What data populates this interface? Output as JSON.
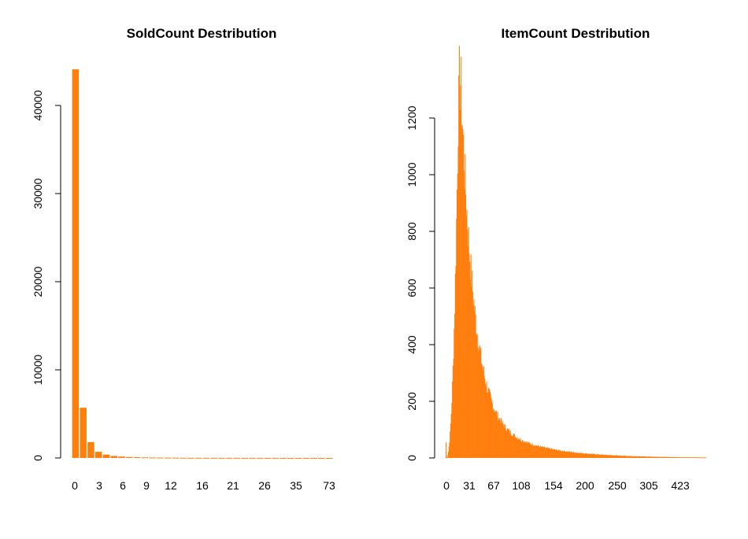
{
  "colors": {
    "bar": "#FF7F0E",
    "axis": "#000000",
    "background": "#FFFFFF"
  },
  "chart_data": [
    {
      "type": "bar",
      "title": "SoldCount Destribution",
      "xlabel": "",
      "ylabel": "",
      "ylim": [
        0,
        45000
      ],
      "y_ticks": [
        0,
        10000,
        20000,
        30000,
        40000
      ],
      "x_tick_labels": [
        "0",
        "3",
        "6",
        "9",
        "12",
        "16",
        "21",
        "26",
        "35",
        "73"
      ],
      "categories": [
        "0",
        "1",
        "2",
        "3",
        "4",
        "5",
        "6",
        "7",
        "8",
        "9",
        "10",
        "11",
        "12",
        "13",
        "14",
        "15",
        "16",
        "17",
        "18",
        "19",
        "20",
        "21",
        "22",
        "23",
        "24",
        "25",
        "26",
        "27",
        "28",
        "30",
        "35",
        "40",
        "50",
        "73"
      ],
      "values": [
        44100,
        5700,
        1800,
        700,
        380,
        230,
        160,
        110,
        85,
        65,
        50,
        42,
        36,
        30,
        25,
        22,
        19,
        17,
        15,
        13,
        12,
        11,
        10,
        9,
        8,
        8,
        7,
        6,
        6,
        5,
        5,
        4,
        4,
        3
      ],
      "grid": false,
      "legend": "none"
    },
    {
      "type": "bar",
      "title": "ItemCount Destribution",
      "xlabel": "",
      "ylabel": "",
      "ylim": [
        0,
        1400
      ],
      "y_ticks": [
        0,
        200,
        400,
        600,
        800,
        1000,
        1200
      ],
      "x_tick_labels": [
        "0",
        "31",
        "67",
        "108",
        "154",
        "200",
        "250",
        "305",
        "423"
      ],
      "distribution": {
        "n_categories": 450,
        "peak_category_index": 22,
        "peak_value": 1350,
        "first_value": 55,
        "shape": "right-skewed, sharp rise to peak then long decaying tail"
      },
      "grid": false,
      "legend": "none"
    }
  ]
}
